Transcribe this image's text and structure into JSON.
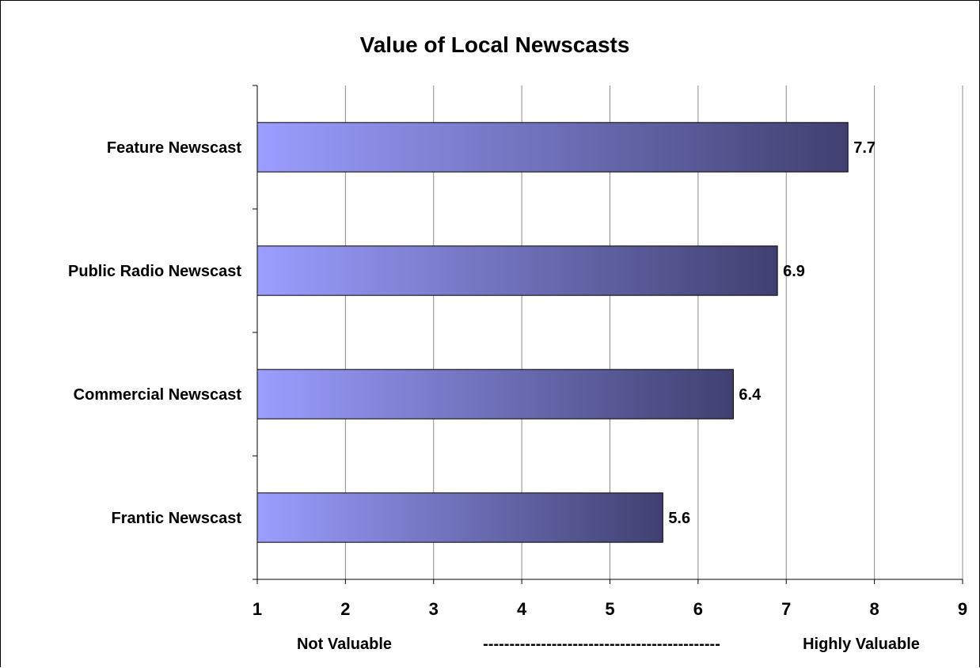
{
  "chart_data": {
    "type": "bar",
    "orientation": "horizontal",
    "title": "Value of Local Newscasts",
    "categories": [
      "Feature Newscast",
      "Public Radio Newscast",
      "Commercial Newscast",
      "Frantic Newscast"
    ],
    "values": [
      7.7,
      6.9,
      6.4,
      5.6
    ],
    "data_labels": [
      "7.7",
      "6.9",
      "6.4",
      "5.6"
    ],
    "xlim": [
      1,
      9
    ],
    "xticks": [
      "1",
      "2",
      "3",
      "4",
      "5",
      "6",
      "7",
      "8",
      "9"
    ],
    "xlabel_left": "Not Valuable",
    "xlabel_middle": "---------------------------------------------",
    "xlabel_right": "Highly Valuable",
    "grid": true,
    "bar_gradient": [
      "#9b9eff",
      "#404070"
    ]
  }
}
